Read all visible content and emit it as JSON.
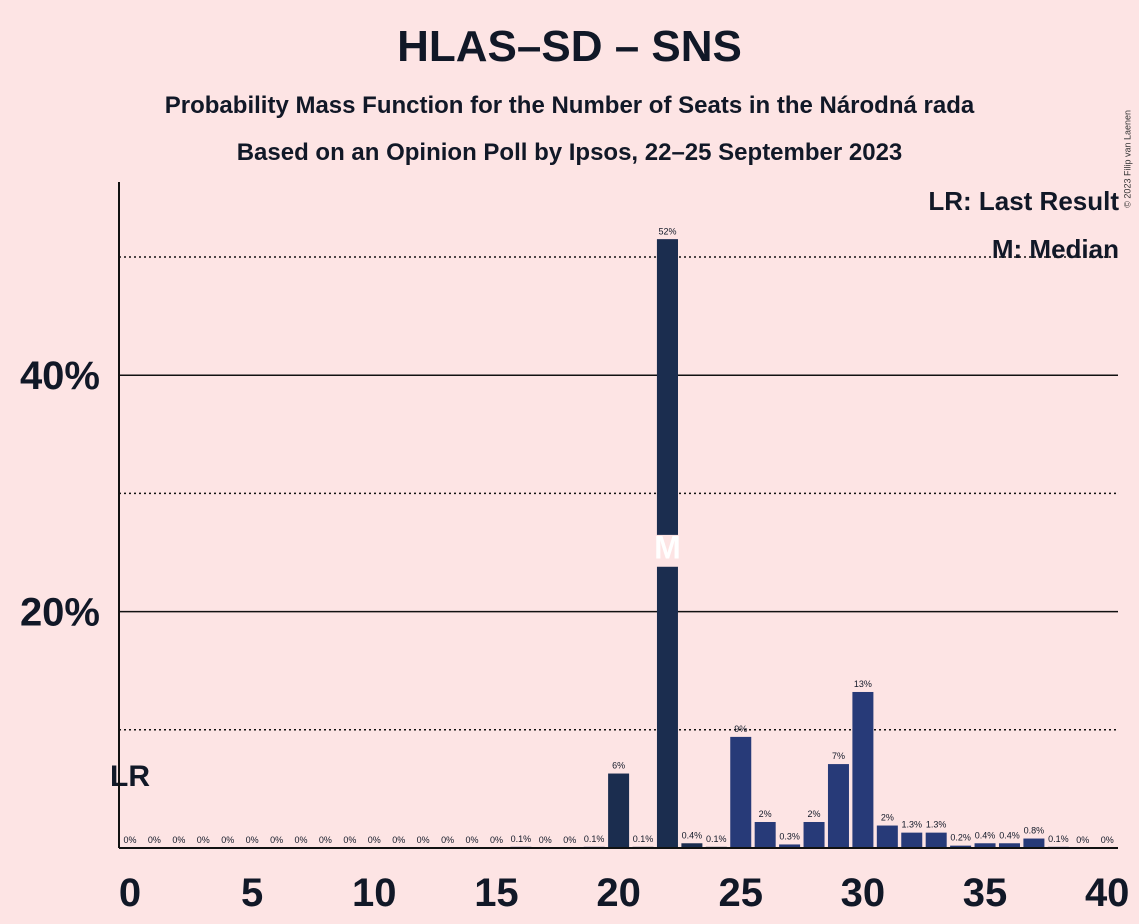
{
  "title": "HLAS–SD – SNS",
  "subtitle_1": "Probability Mass Function for the Number of Seats in the Národná rada",
  "subtitle_2": "Based on an Opinion Poll by Ipsos, 22–25 September 2023",
  "copyright": "© 2023 Filip van Laenen",
  "legend": {
    "last_result": "LR: Last Result",
    "median": "M: Median"
  },
  "colors": {
    "background": "#fde4e4",
    "bar_dark": "#1b2d4f",
    "bar_blue": "#273a78",
    "text": "#111827"
  },
  "chart_data": {
    "type": "bar",
    "x": [
      0,
      1,
      2,
      3,
      4,
      5,
      6,
      7,
      8,
      9,
      10,
      11,
      12,
      13,
      14,
      15,
      16,
      17,
      18,
      19,
      20,
      21,
      22,
      23,
      24,
      25,
      26,
      27,
      28,
      29,
      30,
      31,
      32,
      33,
      34,
      35,
      36,
      37,
      38,
      39,
      40
    ],
    "values": [
      0,
      0,
      0,
      0,
      0,
      0,
      0,
      0,
      0,
      0,
      0,
      0,
      0,
      0,
      0,
      0,
      0.1,
      0,
      0,
      0.1,
      6.3,
      0.1,
      51.5,
      0.4,
      0.1,
      9.4,
      2.2,
      0.3,
      2.2,
      7.1,
      13.2,
      1.9,
      1.3,
      1.3,
      0.2,
      0.4,
      0.4,
      0.8,
      0.1,
      0,
      0
    ],
    "labels": [
      "0%",
      "0%",
      "0%",
      "0%",
      "0%",
      "0%",
      "0%",
      "0%",
      "0%",
      "0%",
      "0%",
      "0%",
      "0%",
      "0%",
      "0%",
      "0%",
      "0.1%",
      "0%",
      "0%",
      "0.1%",
      "6%",
      "0.1%",
      "52%",
      "0.4%",
      "0.1%",
      "9%",
      "2%",
      "0.3%",
      "2%",
      "7%",
      "13%",
      "2%",
      "1.3%",
      "1.3%",
      "0.2%",
      "0.4%",
      "0.4%",
      "0.8%",
      "0.1%",
      "0%",
      "0%"
    ],
    "x_ticks": [
      "0",
      "5",
      "10",
      "15",
      "20",
      "25",
      "30",
      "35",
      "40"
    ],
    "y_ticks": [
      "20%",
      "40%"
    ],
    "ylim": [
      0,
      56
    ],
    "xlim": [
      -0.5,
      40.5
    ],
    "median_seat": 22,
    "median_marker": "M",
    "last_result_seat": 0,
    "last_result_marker": "LR",
    "grid": "solid at 20% and 40%, dotted at 10%, 30% and 50%"
  }
}
